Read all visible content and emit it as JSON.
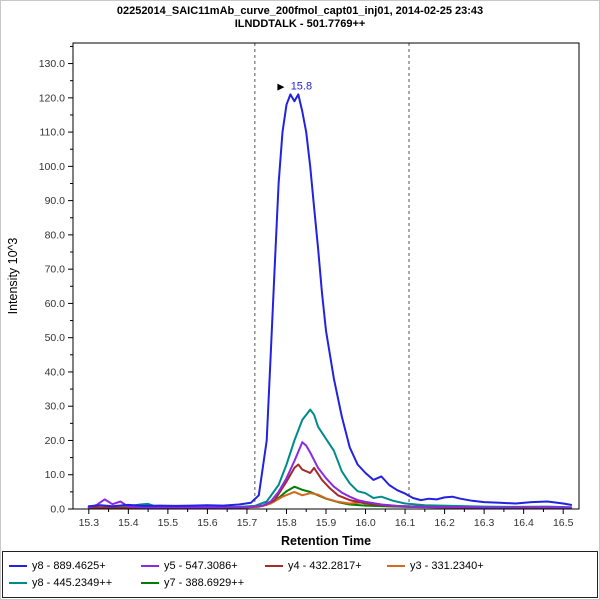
{
  "header": {
    "line1": "02252014_SAIC11mAb_curve_200fmol_capt01_inj01, 2014-02-25 23:43",
    "line2": "ILNDDTALK - 501.7769++"
  },
  "chart_data": {
    "type": "line",
    "title": "02252014_SAIC11mAb_curve_200fmol_capt01_inj01, 2014-02-25 23:43",
    "subtitle": "ILNDDTALK - 501.7769++",
    "xlabel": "Retention Time",
    "ylabel": "Intensity 10^3",
    "xlim": [
      15.26,
      16.54
    ],
    "ylim": [
      0,
      136
    ],
    "x_ticks": [
      15.3,
      15.4,
      15.5,
      15.6,
      15.7,
      15.8,
      15.9,
      16.0,
      16.1,
      16.2,
      16.3,
      16.4,
      16.5
    ],
    "y_ticks": [
      0,
      10,
      20,
      30,
      40,
      50,
      60,
      70,
      80,
      90,
      100,
      110,
      120,
      130
    ],
    "grid": false,
    "legend_position": "bottom",
    "peak_boundaries": [
      15.72,
      16.11
    ],
    "annotation": {
      "text": "15.8",
      "x": 15.815,
      "y": 121.5
    },
    "series": [
      {
        "name": "y8 - 889.4625+",
        "color": "#2222E0",
        "points": [
          [
            15.3,
            0.8
          ],
          [
            15.33,
            1.1
          ],
          [
            15.36,
            0.8
          ],
          [
            15.4,
            1.2
          ],
          [
            15.44,
            0.9
          ],
          [
            15.48,
            1.0
          ],
          [
            15.52,
            0.9
          ],
          [
            15.56,
            1.0
          ],
          [
            15.6,
            1.1
          ],
          [
            15.64,
            1.0
          ],
          [
            15.68,
            1.3
          ],
          [
            15.71,
            1.8
          ],
          [
            15.73,
            4
          ],
          [
            15.75,
            20
          ],
          [
            15.76,
            45
          ],
          [
            15.77,
            70
          ],
          [
            15.78,
            95
          ],
          [
            15.79,
            110
          ],
          [
            15.8,
            118
          ],
          [
            15.81,
            121
          ],
          [
            15.82,
            119
          ],
          [
            15.83,
            121
          ],
          [
            15.84,
            116
          ],
          [
            15.85,
            110
          ],
          [
            15.86,
            100
          ],
          [
            15.87,
            88
          ],
          [
            15.88,
            76
          ],
          [
            15.89,
            63
          ],
          [
            15.9,
            52
          ],
          [
            15.92,
            38
          ],
          [
            15.94,
            27
          ],
          [
            15.96,
            18
          ],
          [
            15.98,
            13
          ],
          [
            16.0,
            10.5
          ],
          [
            16.02,
            8.5
          ],
          [
            16.04,
            9.5
          ],
          [
            16.06,
            7
          ],
          [
            16.08,
            5.5
          ],
          [
            16.1,
            4.5
          ],
          [
            16.12,
            3.2
          ],
          [
            16.14,
            2.6
          ],
          [
            16.16,
            3.0
          ],
          [
            16.18,
            2.8
          ],
          [
            16.2,
            3.4
          ],
          [
            16.22,
            3.6
          ],
          [
            16.24,
            3.0
          ],
          [
            16.27,
            2.4
          ],
          [
            16.3,
            2.0
          ],
          [
            16.34,
            1.8
          ],
          [
            16.38,
            1.6
          ],
          [
            16.42,
            2.0
          ],
          [
            16.46,
            2.2
          ],
          [
            16.5,
            1.6
          ],
          [
            16.52,
            1.2
          ]
        ]
      },
      {
        "name": "y5 - 547.3086+",
        "color": "#8A2BE2",
        "points": [
          [
            15.3,
            0.5
          ],
          [
            15.32,
            1.2
          ],
          [
            15.34,
            2.8
          ],
          [
            15.36,
            1.4
          ],
          [
            15.38,
            2.2
          ],
          [
            15.4,
            0.7
          ],
          [
            15.45,
            0.4
          ],
          [
            15.5,
            0.5
          ],
          [
            15.55,
            0.4
          ],
          [
            15.6,
            0.5
          ],
          [
            15.65,
            0.4
          ],
          [
            15.7,
            0.5
          ],
          [
            15.74,
            1.0
          ],
          [
            15.76,
            2.2
          ],
          [
            15.78,
            5
          ],
          [
            15.8,
            9
          ],
          [
            15.82,
            14
          ],
          [
            15.84,
            19.5
          ],
          [
            15.85,
            18.5
          ],
          [
            15.86,
            16.5
          ],
          [
            15.88,
            12
          ],
          [
            15.9,
            9
          ],
          [
            15.92,
            6.5
          ],
          [
            15.94,
            4.8
          ],
          [
            15.96,
            3.6
          ],
          [
            15.98,
            2.6
          ],
          [
            16.0,
            2.1
          ],
          [
            16.04,
            1.3
          ],
          [
            16.08,
            0.9
          ],
          [
            16.12,
            0.7
          ],
          [
            16.18,
            0.5
          ],
          [
            16.25,
            0.5
          ],
          [
            16.32,
            0.4
          ],
          [
            16.4,
            0.4
          ],
          [
            16.46,
            0.5
          ],
          [
            16.52,
            0.4
          ]
        ]
      },
      {
        "name": "y4 - 432.2817+",
        "color": "#A52A2A",
        "points": [
          [
            15.3,
            0.4
          ],
          [
            15.4,
            0.3
          ],
          [
            15.5,
            0.4
          ],
          [
            15.6,
            0.3
          ],
          [
            15.7,
            0.5
          ],
          [
            15.74,
            0.9
          ],
          [
            15.77,
            2.5
          ],
          [
            15.8,
            8
          ],
          [
            15.82,
            12
          ],
          [
            15.83,
            13
          ],
          [
            15.84,
            11.5
          ],
          [
            15.86,
            10.5
          ],
          [
            15.87,
            12
          ],
          [
            15.89,
            8.5
          ],
          [
            15.91,
            6
          ],
          [
            15.93,
            4
          ],
          [
            15.96,
            2.6
          ],
          [
            16.0,
            1.6
          ],
          [
            16.05,
            1.0
          ],
          [
            16.1,
            0.8
          ],
          [
            16.16,
            0.6
          ],
          [
            16.24,
            0.5
          ],
          [
            16.32,
            0.4
          ],
          [
            16.42,
            0.5
          ],
          [
            16.52,
            0.4
          ]
        ]
      },
      {
        "name": "y3 - 331.2340+",
        "color": "#D2691E",
        "points": [
          [
            15.3,
            0.4
          ],
          [
            15.42,
            0.3
          ],
          [
            15.55,
            0.4
          ],
          [
            15.68,
            0.4
          ],
          [
            15.73,
            0.6
          ],
          [
            15.76,
            1.6
          ],
          [
            15.79,
            3.6
          ],
          [
            15.82,
            5.0
          ],
          [
            15.84,
            4.0
          ],
          [
            15.86,
            4.6
          ],
          [
            15.88,
            4.2
          ],
          [
            15.9,
            3.1
          ],
          [
            15.93,
            2.1
          ],
          [
            15.96,
            1.6
          ],
          [
            16.0,
            2.0
          ],
          [
            16.04,
            1.3
          ],
          [
            16.08,
            0.8
          ],
          [
            16.14,
            0.6
          ],
          [
            16.22,
            0.5
          ],
          [
            16.32,
            0.4
          ],
          [
            16.42,
            0.5
          ],
          [
            16.52,
            0.4
          ]
        ]
      },
      {
        "name": "y8 - 445.2349++",
        "color": "#008B8B",
        "points": [
          [
            15.3,
            0.5
          ],
          [
            15.38,
            0.4
          ],
          [
            15.43,
            1.3
          ],
          [
            15.45,
            1.5
          ],
          [
            15.47,
            0.7
          ],
          [
            15.55,
            0.5
          ],
          [
            15.62,
            0.5
          ],
          [
            15.68,
            0.6
          ],
          [
            15.72,
            0.9
          ],
          [
            15.75,
            2.2
          ],
          [
            15.78,
            7
          ],
          [
            15.8,
            13
          ],
          [
            15.82,
            20
          ],
          [
            15.84,
            26
          ],
          [
            15.86,
            29
          ],
          [
            15.87,
            27.5
          ],
          [
            15.88,
            24
          ],
          [
            15.9,
            20.5
          ],
          [
            15.92,
            17
          ],
          [
            15.94,
            11
          ],
          [
            15.96,
            7.5
          ],
          [
            15.98,
            5.2
          ],
          [
            16.0,
            4.6
          ],
          [
            16.02,
            3.2
          ],
          [
            16.04,
            3.6
          ],
          [
            16.07,
            2.4
          ],
          [
            16.1,
            1.6
          ],
          [
            16.15,
            1.1
          ],
          [
            16.22,
            0.9
          ],
          [
            16.3,
            0.7
          ],
          [
            16.38,
            0.6
          ],
          [
            16.46,
            0.7
          ],
          [
            16.52,
            0.5
          ]
        ]
      },
      {
        "name": "y7 - 388.6929++",
        "color": "#008000",
        "points": [
          [
            15.3,
            0.4
          ],
          [
            15.4,
            0.3
          ],
          [
            15.52,
            0.4
          ],
          [
            15.64,
            0.4
          ],
          [
            15.72,
            0.6
          ],
          [
            15.75,
            1.2
          ],
          [
            15.78,
            3.2
          ],
          [
            15.8,
            5.2
          ],
          [
            15.82,
            6.5
          ],
          [
            15.84,
            5.6
          ],
          [
            15.86,
            5.0
          ],
          [
            15.88,
            4.0
          ],
          [
            15.9,
            3.0
          ],
          [
            15.93,
            2.0
          ],
          [
            15.96,
            1.3
          ],
          [
            16.0,
            1.0
          ],
          [
            16.05,
            0.8
          ],
          [
            16.1,
            0.6
          ],
          [
            16.18,
            0.5
          ],
          [
            16.28,
            0.4
          ],
          [
            16.4,
            0.4
          ],
          [
            16.52,
            0.4
          ]
        ]
      }
    ]
  }
}
